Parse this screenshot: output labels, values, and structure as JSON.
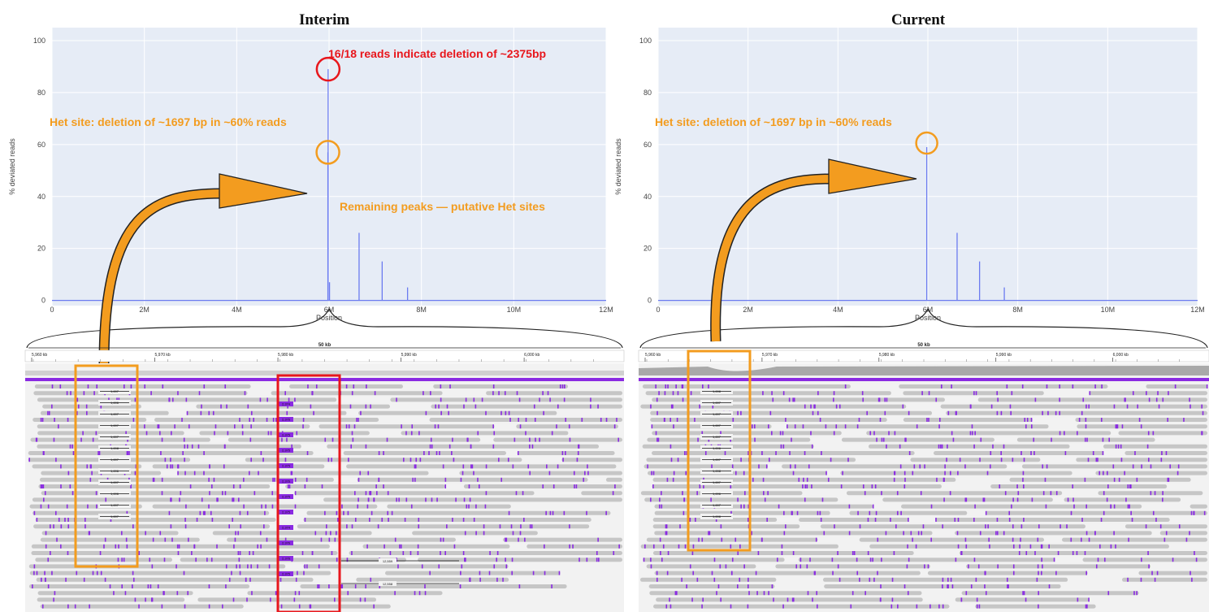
{
  "colors": {
    "plot_bg": "#e6ecf6",
    "grid": "#ffffff",
    "trace": "#6b7bf0",
    "annotation_orange": "#f39c1f",
    "annotation_red": "#e8161c",
    "read_gray": "#c6c6c6",
    "coverage_gray": "#a9a9a9",
    "insertion_purple": "#8a2be2"
  },
  "panels": [
    {
      "title": "Interim",
      "annotations": {
        "red": "16/18 reads indicate deletion of  ~2375bp",
        "het": "Het site: deletion of ~1697 bp in ~60% reads",
        "remaining": "Remaining peaks — putative Het sites"
      },
      "igv": {
        "span_label": "50 kb",
        "ticks": [
          "5,960 kb",
          "5,970 kb",
          "5,980 kb",
          "5,990 kb",
          "6,000 kb"
        ],
        "deletion_labels": [
          "1,697",
          "1,696",
          "1,697",
          "1,697",
          "1,697",
          "1,698",
          "1,697",
          "1,696",
          "1,697",
          "1,696",
          "1,697",
          "1,697"
        ],
        "ins_labels": [
          "2,374",
          "2,376",
          "2,375",
          "2,375",
          "2,375",
          "2,376",
          "2,375",
          "2,375",
          "2,374",
          "2,376",
          "2,376",
          "2,375"
        ],
        "long_del_labels": [
          "12,559",
          "12,558"
        ]
      }
    },
    {
      "title": "Current",
      "annotations": {
        "het": "Het site: deletion of ~1697 bp in ~60% reads"
      },
      "igv": {
        "span_label": "50 kb",
        "ticks": [
          "5,960 kb",
          "5,970 kb",
          "5,980 kb",
          "5,990 kb",
          "6,000 kb"
        ],
        "deletion_labels": [
          "1,698",
          "1,697",
          "1,697",
          "1,697",
          "1,697",
          "1,696",
          "1,697",
          "1,698",
          "1,697",
          "1,696",
          "1,697",
          "1,698"
        ]
      }
    }
  ],
  "chart_data": [
    {
      "type": "line",
      "title": "Interim",
      "xlabel": "Position",
      "ylabel": "% deviated reads",
      "xlim": [
        0,
        12000000
      ],
      "ylim": [
        -2,
        105
      ],
      "xticks": [
        "0",
        "2M",
        "4M",
        "6M",
        "8M",
        "10M",
        "12M"
      ],
      "yticks": [
        "0",
        "20",
        "40",
        "60",
        "80",
        "100"
      ],
      "grid": true,
      "peaks": [
        {
          "x": 5980000,
          "y": 89
        },
        {
          "x": 5975000,
          "y": 57
        },
        {
          "x": 6010000,
          "y": 7
        },
        {
          "x": 6650000,
          "y": 26
        },
        {
          "x": 7150000,
          "y": 15
        },
        {
          "x": 7700000,
          "y": 5
        }
      ]
    },
    {
      "type": "line",
      "title": "Current",
      "xlabel": "Position",
      "ylabel": "% deviated reads",
      "xlim": [
        0,
        12000000
      ],
      "ylim": [
        -2,
        105
      ],
      "xticks": [
        "0",
        "2M",
        "4M",
        "6M",
        "8M",
        "10M",
        "12M"
      ],
      "yticks": [
        "0",
        "20",
        "40",
        "60",
        "80",
        "100"
      ],
      "grid": true,
      "peaks": [
        {
          "x": 5975000,
          "y": 59
        },
        {
          "x": 6650000,
          "y": 26
        },
        {
          "x": 7150000,
          "y": 15
        },
        {
          "x": 7700000,
          "y": 5
        }
      ]
    }
  ]
}
